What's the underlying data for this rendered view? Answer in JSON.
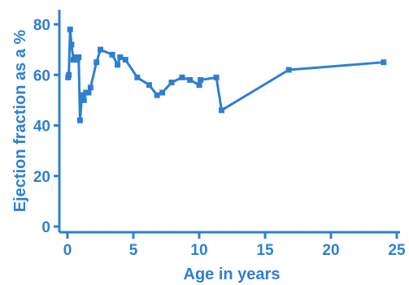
{
  "chart_data": {
    "type": "line",
    "title": "",
    "xlabel": "Age in years",
    "ylabel": "Ejection fraction as a %",
    "xlim": [
      0,
      25
    ],
    "ylim": [
      0,
      80
    ],
    "x_ticks": [
      "0",
      "5",
      "10",
      "15",
      "20",
      "25"
    ],
    "y_ticks": [
      "0",
      "20",
      "40",
      "60",
      "80"
    ],
    "grid": false,
    "legend": "none",
    "color": "#2f7fd0",
    "series": [
      {
        "points": [
          {
            "x": 0.05,
            "y": 59
          },
          {
            "x": 0.1,
            "y": 60
          },
          {
            "x": 0.2,
            "y": 78
          },
          {
            "x": 0.3,
            "y": 72
          },
          {
            "x": 0.45,
            "y": 66
          },
          {
            "x": 0.6,
            "y": 67
          },
          {
            "x": 0.75,
            "y": 66
          },
          {
            "x": 0.85,
            "y": 67
          },
          {
            "x": 0.95,
            "y": 42
          },
          {
            "x": 1.1,
            "y": 52
          },
          {
            "x": 1.25,
            "y": 50
          },
          {
            "x": 1.4,
            "y": 53
          },
          {
            "x": 1.6,
            "y": 53
          },
          {
            "x": 1.75,
            "y": 55
          },
          {
            "x": 2.2,
            "y": 65
          },
          {
            "x": 2.5,
            "y": 70
          },
          {
            "x": 3.4,
            "y": 68
          },
          {
            "x": 3.8,
            "y": 64
          },
          {
            "x": 4.0,
            "y": 67
          },
          {
            "x": 4.4,
            "y": 66
          },
          {
            "x": 5.3,
            "y": 59
          },
          {
            "x": 6.2,
            "y": 56
          },
          {
            "x": 6.8,
            "y": 52
          },
          {
            "x": 7.2,
            "y": 53
          },
          {
            "x": 7.9,
            "y": 57
          },
          {
            "x": 8.7,
            "y": 59
          },
          {
            "x": 9.3,
            "y": 58
          },
          {
            "x": 10.0,
            "y": 56
          },
          {
            "x": 10.1,
            "y": 58
          },
          {
            "x": 11.3,
            "y": 59
          },
          {
            "x": 11.7,
            "y": 46
          },
          {
            "x": 16.8,
            "y": 62
          },
          {
            "x": 24.0,
            "y": 65
          }
        ]
      }
    ]
  }
}
